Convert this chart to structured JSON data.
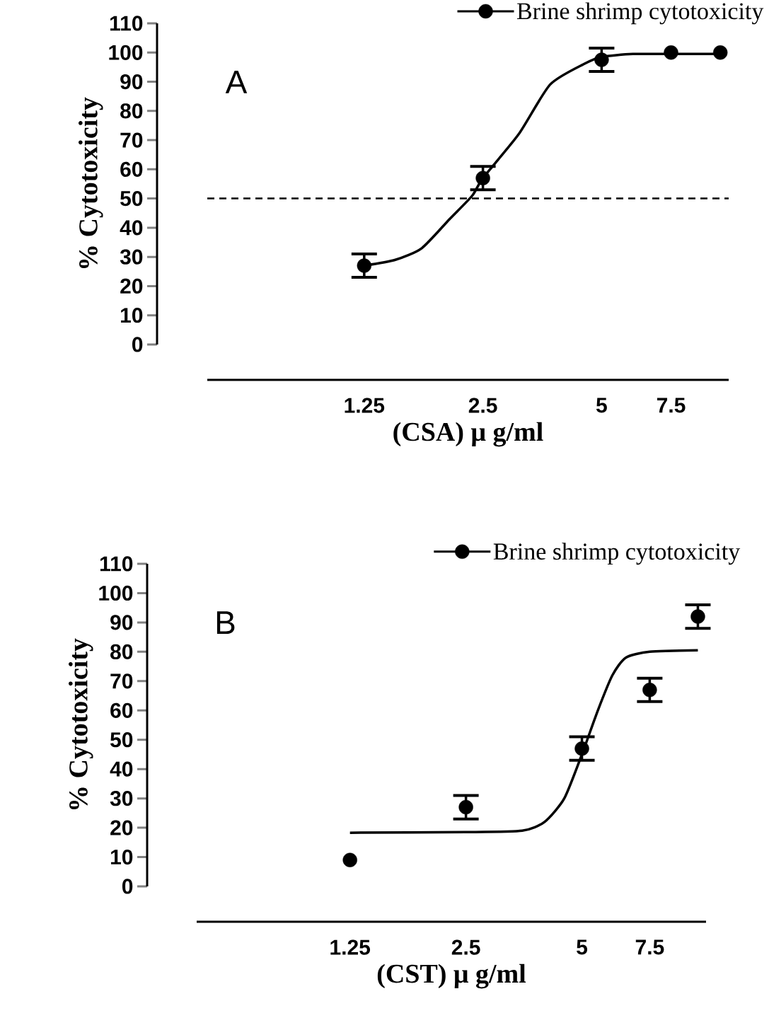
{
  "chart_data": [
    {
      "type": "scatter",
      "xlabel": "(CSA) μ g/ml",
      "ylabel": "% Cytotoxicity",
      "log": "x",
      "xlim": [
        0.5,
        10.5
      ],
      "xticks": [
        1.25,
        2.5,
        5,
        7.5
      ],
      "ylim": [
        0,
        110
      ],
      "yticks": [
        0,
        10,
        20,
        30,
        40,
        50,
        60,
        70,
        80,
        90,
        100,
        110
      ],
      "legend": "top right",
      "annotations": [
        "A"
      ],
      "ref_lines": [
        {
          "axis": "y",
          "value": 50,
          "line_style": "dashed"
        }
      ],
      "series": [
        {
          "name": "Brine shrimp cytotoxicity",
          "color": "#000000",
          "marker": "circle",
          "x": [
            1.25,
            2.5,
            5,
            7.5,
            10
          ],
          "values": [
            27,
            57,
            97.5,
            100,
            100
          ],
          "errors": [
            4,
            4,
            4,
            null,
            null
          ]
        },
        {
          "type": "line",
          "color": "#000000",
          "marker": "none",
          "x": [
            1.25,
            1.5,
            1.75,
            2.06,
            2.35,
            2.5,
            3.08,
            3.7,
            4.5,
            5,
            6,
            7.5,
            10
          ],
          "values": [
            27,
            29,
            33,
            43,
            51,
            57,
            72,
            89,
            96,
            98.5,
            99.5,
            99.5,
            99.5
          ]
        }
      ]
    },
    {
      "type": "scatter",
      "xlabel": "(CST) μ g/ml",
      "ylabel": "% Cytotoxicity",
      "log": "x",
      "xlim": [
        0.5,
        10.5
      ],
      "xticks": [
        1.25,
        2.5,
        5,
        7.5
      ],
      "ylim": [
        0,
        110
      ],
      "yticks": [
        0,
        10,
        20,
        30,
        40,
        50,
        60,
        70,
        80,
        90,
        100,
        110
      ],
      "legend": "top right",
      "annotations": [
        "B"
      ],
      "series": [
        {
          "name": "Brine shrimp cytotoxicity",
          "color": "#000000",
          "marker": "circle",
          "x": [
            1.25,
            2.5,
            5,
            7.5,
            10
          ],
          "values": [
            9,
            27,
            47,
            67,
            92
          ],
          "errors": [
            null,
            4,
            4,
            4,
            4
          ]
        },
        {
          "type": "line",
          "color": "#000000",
          "marker": "none",
          "x": [
            1.25,
            2.5,
            3.5,
            4,
            4.5,
            5,
            5.5,
            6,
            6.5,
            7.5,
            10
          ],
          "values": [
            18.3,
            18.5,
            19,
            22,
            30,
            45,
            60,
            72,
            78,
            80,
            80.5
          ]
        }
      ]
    }
  ]
}
